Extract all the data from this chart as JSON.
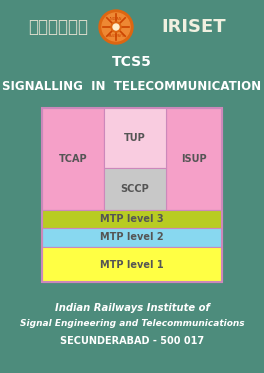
{
  "bg_color": "#4d8c7c",
  "title_tcs5": "TCS5",
  "title_main": "SIGNALLING  IN  TELECOMMUNICATION",
  "hindi_text": "इरिसेट",
  "iriset_text": "IRISET",
  "footer_line1": "Indian Railways Institute of",
  "footer_line2": "Signal Engineering and Telecommunications",
  "footer_line3": "SECUNDERABAD - 500 017",
  "diagram": {
    "outer_border_color": "#cc88bb",
    "tcap_color": "#f5a0c8",
    "tup_color": "#f9cce0",
    "isup_color": "#f5a0c8",
    "sccp_color": "#c8c8c8",
    "mtp3_color": "#b8cc22",
    "mtp2_color": "#88d8f0",
    "mtp1_color": "#ffff44",
    "label_color": "#555555",
    "labels": {
      "tcap": "TCAP",
      "tup": "TUP",
      "isup": "ISUP",
      "sccp": "SCCP",
      "mtp3": "MTP level 3",
      "mtp2": "MTP level 2",
      "mtp1": "MTP level 1"
    }
  },
  "logo_outer": "#dd6611",
  "logo_inner": "#ee8833",
  "logo_hub": "#dd6611",
  "hindi_color": "#ddddcc",
  "iriset_color": "#f0f0e0"
}
